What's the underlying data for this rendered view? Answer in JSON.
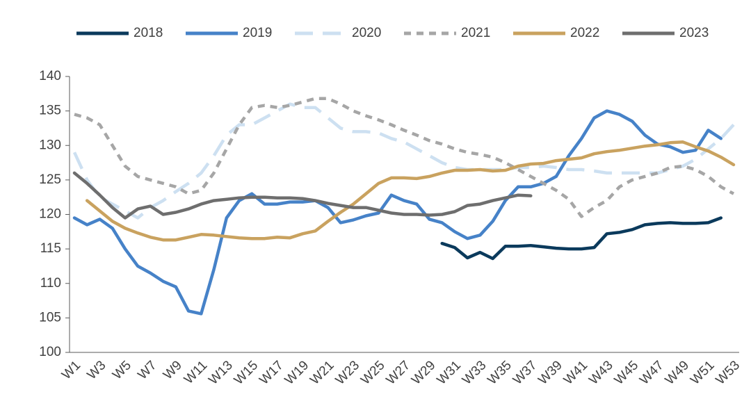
{
  "chart_data": {
    "type": "line",
    "categories": [
      "W1",
      null,
      "W3",
      null,
      "W5",
      null,
      "W7",
      null,
      "W9",
      null,
      "W11",
      null,
      "W13",
      null,
      "W15",
      null,
      "W17",
      null,
      "W19",
      null,
      "W21",
      null,
      "W23",
      null,
      "W25",
      null,
      "W27",
      null,
      "W29",
      null,
      "W31",
      null,
      "W33",
      null,
      "W35",
      null,
      "W37",
      null,
      "W39",
      null,
      "W41",
      null,
      "W43",
      null,
      "W45",
      null,
      "W47",
      null,
      "W49",
      null,
      "W51",
      null,
      "W53"
    ],
    "ylim": [
      100,
      140
    ],
    "yticks": [
      100,
      105,
      110,
      115,
      120,
      125,
      130,
      135,
      140
    ],
    "legend": "top",
    "series": [
      {
        "name": "2018",
        "color": "#0b3a5c",
        "dashed": false,
        "values": [
          null,
          null,
          null,
          null,
          null,
          null,
          null,
          null,
          null,
          null,
          null,
          null,
          null,
          null,
          null,
          null,
          null,
          null,
          null,
          null,
          null,
          null,
          null,
          null,
          null,
          null,
          null,
          null,
          null,
          115.8,
          115.2,
          113.7,
          114.5,
          113.6,
          115.4,
          115.4,
          115.5,
          115.3,
          115.1,
          115,
          115,
          115.2,
          117.2,
          117.4,
          117.8,
          118.5,
          118.7,
          118.8,
          118.7,
          118.7,
          118.8,
          119.5,
          null
        ]
      },
      {
        "name": "2019",
        "color": "#4682c8",
        "dashed": false,
        "values": [
          119.5,
          118.5,
          119.3,
          118,
          115,
          112.5,
          111.5,
          110.3,
          109.5,
          106,
          105.6,
          112,
          119.5,
          122,
          123,
          121.5,
          121.5,
          121.8,
          121.8,
          122,
          121,
          118.8,
          119.2,
          119.8,
          120.2,
          122.8,
          122,
          121.5,
          119.3,
          118.8,
          117.5,
          116.5,
          117,
          119,
          122,
          124,
          124,
          124.5,
          125.5,
          128.5,
          131,
          134,
          135,
          134.5,
          133.5,
          131.5,
          130.2,
          129.8,
          129,
          129.3,
          132.2,
          131,
          null
        ]
      },
      {
        "name": "2020",
        "color": "#cde0f1",
        "dashed": true,
        "values": [
          129,
          125,
          122.5,
          121.5,
          120.5,
          119.5,
          121,
          122,
          123.3,
          124.5,
          126,
          128.5,
          131.5,
          133,
          133,
          134,
          135,
          136,
          135.5,
          135.5,
          134,
          132.5,
          132,
          132,
          131.8,
          131,
          130.5,
          129.5,
          128.5,
          127.5,
          126.8,
          126.5,
          126.5,
          126.5,
          126.5,
          126.8,
          126.8,
          127,
          126.8,
          126.5,
          126.5,
          126.3,
          126,
          126,
          126,
          126,
          126,
          126.5,
          127,
          128,
          129.5,
          131,
          133
        ]
      },
      {
        "name": "2021",
        "color": "#a6a6a6",
        "dashed": true,
        "values": [
          134.5,
          134,
          133,
          130,
          127,
          125.5,
          125,
          124.5,
          124,
          123,
          123.5,
          126,
          129.5,
          133,
          135.5,
          135.8,
          135.5,
          135.8,
          136.3,
          136.8,
          136.8,
          136,
          135,
          134.3,
          133.7,
          133,
          132.2,
          131.5,
          130.7,
          130.2,
          129.5,
          129,
          128.7,
          128.3,
          127.5,
          126.5,
          125.5,
          124.5,
          123.5,
          122.2,
          119.7,
          121,
          122,
          124,
          125,
          125.5,
          126,
          126.8,
          127,
          126.5,
          125.5,
          124,
          123
        ]
      },
      {
        "name": "2022",
        "color": "#c9a25f",
        "dashed": false,
        "values": [
          null,
          122,
          120.5,
          119,
          118,
          117.3,
          116.7,
          116.3,
          116.3,
          116.7,
          117.1,
          117,
          116.8,
          116.6,
          116.5,
          116.5,
          116.7,
          116.6,
          117.2,
          117.6,
          119,
          120.3,
          121.5,
          123,
          124.5,
          125.3,
          125.3,
          125.2,
          125.5,
          126,
          126.4,
          126.4,
          126.5,
          126.3,
          126.4,
          127,
          127.3,
          127.4,
          127.8,
          128,
          128.2,
          128.8,
          129.1,
          129.3,
          129.6,
          129.9,
          130.1,
          130.4,
          130.5,
          129.8,
          129.2,
          128.3,
          127.2
        ]
      },
      {
        "name": "2023",
        "color": "#6e6e6e",
        "dashed": false,
        "values": [
          126,
          124.5,
          122.8,
          121,
          119.5,
          120.8,
          121.2,
          120,
          120.3,
          120.8,
          121.5,
          122,
          122.2,
          122.4,
          122.5,
          122.5,
          122.4,
          122.4,
          122.3,
          122,
          121.6,
          121.3,
          121,
          121,
          120.6,
          120.2,
          120,
          120,
          119.9,
          120,
          120.4,
          121.3,
          121.5,
          122,
          122.4,
          122.8,
          122.7,
          null,
          null,
          null,
          null,
          null,
          null,
          null,
          null,
          null,
          null,
          null,
          null,
          null,
          null,
          null,
          null
        ]
      }
    ]
  }
}
